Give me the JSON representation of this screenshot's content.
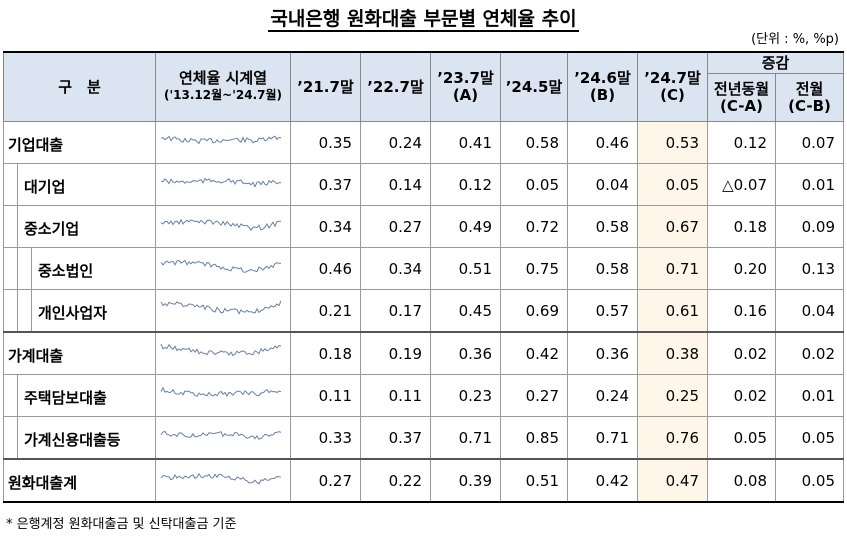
{
  "header": {
    "title": "국내은행 원화대출 부문별 연체율 추이",
    "unit": "(단위 : %, %p)"
  },
  "table": {
    "columns": [
      {
        "label": "구　분"
      },
      {
        "label": "연체율 시계열",
        "sub": "('13.12월~'24.7월)"
      },
      {
        "label": "’21.7말"
      },
      {
        "label": "’22.7말"
      },
      {
        "label": "’23.7말",
        "sub": "(A)"
      },
      {
        "label": "’24.5말"
      },
      {
        "label": "’24.6말",
        "sub": "(B)"
      },
      {
        "label": "’24.7말",
        "sub": "(C)"
      },
      {
        "label": "전년동월",
        "sub": "(C-A)"
      },
      {
        "label": "전월",
        "sub": "(C-B)"
      }
    ],
    "group_header": "증감",
    "rows": [
      {
        "label": "기업대출",
        "values": [
          "0.35",
          "0.24",
          "0.41",
          "0.58",
          "0.46",
          "0.53",
          "0.12",
          "0.07"
        ]
      },
      {
        "label": "대기업",
        "values": [
          "0.37",
          "0.14",
          "0.12",
          "0.05",
          "0.04",
          "0.05",
          "△0.07",
          "0.01"
        ]
      },
      {
        "label": "중소기업",
        "values": [
          "0.34",
          "0.27",
          "0.49",
          "0.72",
          "0.58",
          "0.67",
          "0.18",
          "0.09"
        ]
      },
      {
        "label": "중소법인",
        "values": [
          "0.46",
          "0.34",
          "0.51",
          "0.75",
          "0.58",
          "0.71",
          "0.20",
          "0.13"
        ]
      },
      {
        "label": "개인사업자",
        "values": [
          "0.21",
          "0.17",
          "0.45",
          "0.69",
          "0.57",
          "0.61",
          "0.16",
          "0.04"
        ]
      },
      {
        "label": "가계대출",
        "values": [
          "0.18",
          "0.19",
          "0.36",
          "0.42",
          "0.36",
          "0.38",
          "0.02",
          "0.02"
        ]
      },
      {
        "label": "주택담보대출",
        "values": [
          "0.11",
          "0.11",
          "0.23",
          "0.27",
          "0.24",
          "0.25",
          "0.02",
          "0.01"
        ]
      },
      {
        "label": "가계신용대출등",
        "values": [
          "0.33",
          "0.37",
          "0.71",
          "0.85",
          "0.71",
          "0.76",
          "0.05",
          "0.05"
        ]
      },
      {
        "label": "원화대출계",
        "values": [
          "0.27",
          "0.22",
          "0.39",
          "0.51",
          "0.42",
          "0.47",
          "0.08",
          "0.05"
        ]
      }
    ]
  },
  "footnote": "* 은행계정 원화대출금 및 신탁대출금 기준"
}
